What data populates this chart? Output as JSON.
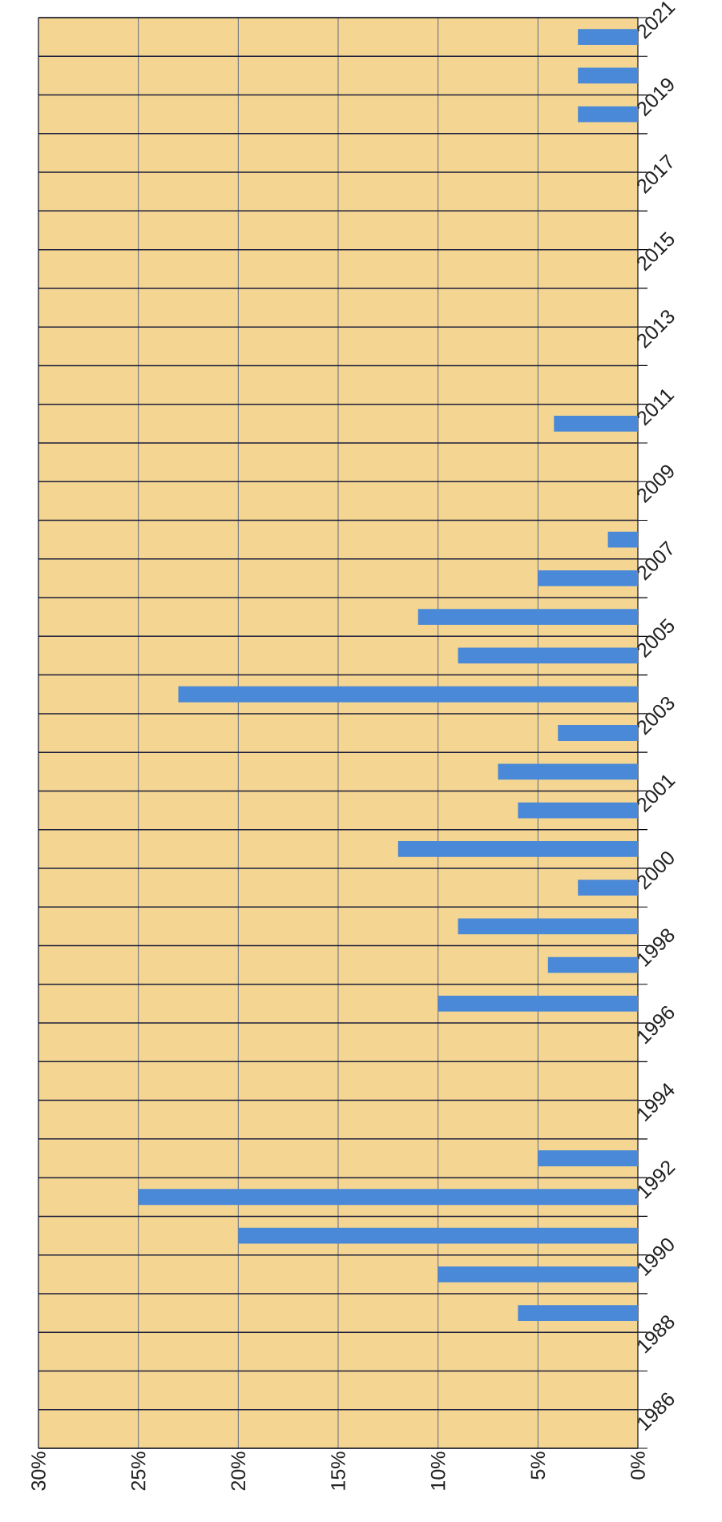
{
  "chart_data": {
    "type": "bar",
    "orientation": "horizontal",
    "categories": [
      "2021",
      null,
      "2019",
      null,
      "2017",
      null,
      "2015",
      null,
      "2013",
      null,
      "2011",
      null,
      "2009",
      null,
      "2007",
      null,
      "2005",
      null,
      "2003",
      null,
      "2001",
      null,
      "2000",
      null,
      "1998",
      null,
      "1996",
      null,
      "1994",
      null,
      "1992",
      null,
      "1990",
      null,
      "1988",
      null,
      "1986"
    ],
    "values": [
      3,
      3,
      3,
      null,
      null,
      null,
      null,
      null,
      null,
      null,
      4.2,
      null,
      null,
      1.5,
      5,
      11,
      9,
      23,
      4,
      7,
      6,
      12,
      3,
      9,
      4.5,
      10,
      null,
      null,
      null,
      5,
      25,
      20,
      10,
      6,
      null,
      null,
      null
    ],
    "color": "#4a88d8",
    "xlim": [
      30,
      0
    ],
    "xticks": [
      {
        "value": 30,
        "label": "30%"
      },
      {
        "value": 25,
        "label": "25%"
      },
      {
        "value": 20,
        "label": "20%"
      },
      {
        "value": 15,
        "label": "15%"
      },
      {
        "value": 10,
        "label": "10%"
      },
      {
        "value": 5,
        "label": "5%"
      },
      {
        "value": 0,
        "label": "0%"
      }
    ],
    "grid": true
  }
}
